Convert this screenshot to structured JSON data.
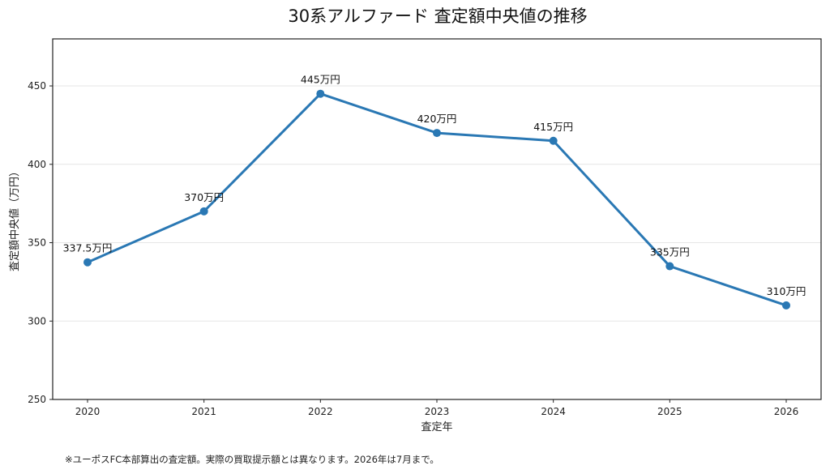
{
  "chart_data": {
    "type": "line",
    "title": "30系アルファード 査定額中央値の推移",
    "xlabel": "査定年",
    "ylabel": "査定額中央値（万円）",
    "categories": [
      "2020",
      "2021",
      "2022",
      "2023",
      "2024",
      "2025",
      "2026"
    ],
    "series": [
      {
        "values": [
          337.5,
          370,
          445,
          420,
          415,
          335,
          310
        ],
        "color": "#2a78b4"
      }
    ],
    "data_labels": [
      "337.5万円",
      "370万円",
      "445万円",
      "420万円",
      "415万円",
      "335万円",
      "310万円"
    ],
    "ylim": [
      250,
      480
    ],
    "yticks": [
      250,
      300,
      350,
      400,
      450
    ],
    "grid": "horizontal",
    "legend": "none"
  },
  "footnote": "※ユーポスFC本部算出の査定額。実際の買取提示額とは異なります。2026年は7月まで。"
}
